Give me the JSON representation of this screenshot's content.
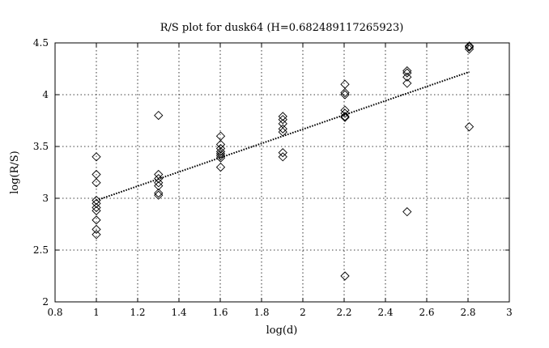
{
  "chart_data": {
    "type": "scatter",
    "title": "R/S plot for dusk64 (H=0.682489117265923)",
    "xlabel": "log(d)",
    "ylabel": "log(R/S)",
    "xlim": [
      0.8,
      3
    ],
    "ylim": [
      2,
      4.5
    ],
    "xticks": [
      "0.8",
      "1",
      "1.2",
      "1.4",
      "1.6",
      "1.8",
      "2",
      "2.2",
      "2.4",
      "2.6",
      "2.8",
      "3"
    ],
    "yticks": [
      "2",
      "2.5",
      "3",
      "3.5",
      "4",
      "4.5"
    ],
    "grid": true,
    "marker": "diamond",
    "points": [
      [
        1.0,
        3.4
      ],
      [
        1.0,
        3.23
      ],
      [
        1.0,
        3.15
      ],
      [
        1.0,
        2.98
      ],
      [
        1.0,
        2.95
      ],
      [
        1.0,
        2.91
      ],
      [
        1.0,
        2.88
      ],
      [
        1.0,
        2.79
      ],
      [
        1.0,
        2.7
      ],
      [
        1.0,
        2.65
      ],
      [
        1.301,
        3.8
      ],
      [
        1.301,
        3.23
      ],
      [
        1.301,
        3.19
      ],
      [
        1.301,
        3.15
      ],
      [
        1.301,
        3.12
      ],
      [
        1.301,
        3.05
      ],
      [
        1.301,
        3.03
      ],
      [
        1.602,
        3.6
      ],
      [
        1.602,
        3.52
      ],
      [
        1.602,
        3.48
      ],
      [
        1.602,
        3.45
      ],
      [
        1.602,
        3.43
      ],
      [
        1.602,
        3.41
      ],
      [
        1.602,
        3.39
      ],
      [
        1.602,
        3.3
      ],
      [
        1.903,
        3.79
      ],
      [
        1.903,
        3.76
      ],
      [
        1.903,
        3.72
      ],
      [
        1.903,
        3.67
      ],
      [
        1.903,
        3.64
      ],
      [
        1.903,
        3.44
      ],
      [
        1.903,
        3.4
      ],
      [
        2.204,
        4.1
      ],
      [
        2.204,
        4.02
      ],
      [
        2.204,
        4.0
      ],
      [
        2.204,
        3.85
      ],
      [
        2.204,
        3.82
      ],
      [
        2.204,
        3.79
      ],
      [
        2.204,
        3.78
      ],
      [
        2.204,
        2.25
      ],
      [
        2.505,
        4.23
      ],
      [
        2.505,
        4.21
      ],
      [
        2.505,
        4.17
      ],
      [
        2.505,
        4.11
      ],
      [
        2.505,
        2.87
      ],
      [
        2.806,
        4.47
      ],
      [
        2.806,
        4.46
      ],
      [
        2.806,
        4.44
      ],
      [
        2.806,
        3.69
      ]
    ],
    "fit_line": {
      "style": "dotted",
      "x": [
        1.0,
        2.806
      ],
      "y": [
        2.98,
        4.22
      ]
    }
  }
}
